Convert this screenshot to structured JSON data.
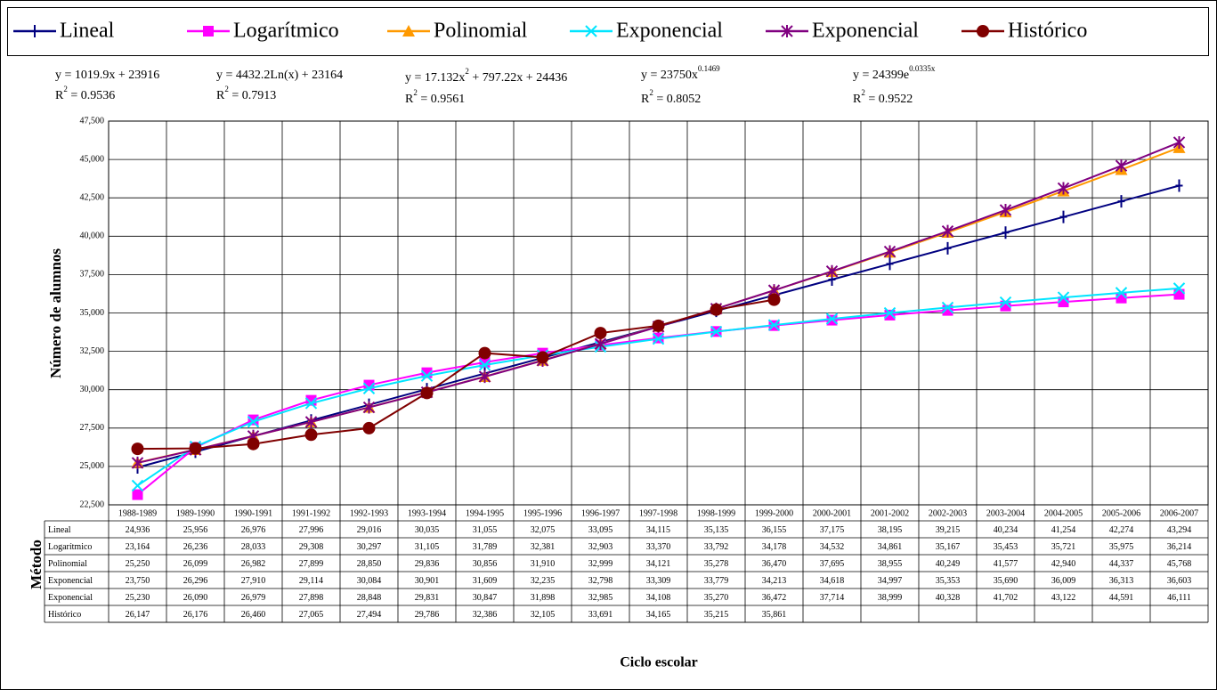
{
  "chart_data": {
    "type": "line",
    "y_label": "Número de alumnos",
    "x_label": "Ciclo escolar",
    "table_label": "Método",
    "annotations": [
      [
        [
          "y = 1019.9x + 23916"
        ],
        [
          "R",
          "2",
          " = 0.9536"
        ]
      ],
      [
        [
          "y = 4432.2Ln(x) + 23164"
        ],
        [
          "R",
          "2",
          " = 0.7913"
        ]
      ],
      [
        [
          "y = 17.132x",
          "2",
          " + 797.22x + 24436"
        ],
        [
          "R",
          "2",
          " = 0.9561"
        ]
      ],
      [
        [
          "y = 23750x",
          "0.1469"
        ],
        [
          "R",
          "2",
          " = 0.8052"
        ]
      ],
      [
        [
          "y = 24399e",
          "0.0335x"
        ],
        [
          "R",
          "2",
          " = 0.9522"
        ]
      ]
    ],
    "categories": [
      "1988-1989",
      "1989-1990",
      "1990-1991",
      "1991-1992",
      "1992-1993",
      "1993-1994",
      "1994-1995",
      "1995-1996",
      "1996-1997",
      "1997-1998",
      "1998-1999",
      "1999-2000",
      "2000-2001",
      "2001-2002",
      "2002-2003",
      "2003-2004",
      "2004-2005",
      "2005-2006",
      "2006-2007"
    ],
    "ylim": [
      22500,
      47500
    ],
    "yticks": [
      {
        "value": 22500,
        "label": "22,500"
      },
      {
        "value": 25000,
        "label": "25,000"
      },
      {
        "value": 27500,
        "label": "27,500"
      },
      {
        "value": 30000,
        "label": "30,000"
      },
      {
        "value": 32500,
        "label": "32,500"
      },
      {
        "value": 35000,
        "label": "35,000"
      },
      {
        "value": 37500,
        "label": "37,500"
      },
      {
        "value": 40000,
        "label": "40,000"
      },
      {
        "value": 42500,
        "label": "42,500"
      },
      {
        "value": 45000,
        "label": "45,000"
      },
      {
        "value": 47500,
        "label": "47,500"
      }
    ],
    "grid": true,
    "series": [
      {
        "name": "Lineal",
        "color": "#000080",
        "marker": "plus",
        "values": [
          24936,
          25956,
          26976,
          27996,
          29016,
          30035,
          31055,
          32075,
          33095,
          34115,
          35135,
          36155,
          37175,
          38195,
          39215,
          40234,
          41254,
          42274,
          43294
        ],
        "value_labels": [
          "24,936",
          "25,956",
          "26,976",
          "27,996",
          "29,016",
          "30,035",
          "31,055",
          "32,075",
          "33,095",
          "34,115",
          "35,135",
          "36,155",
          "37,175",
          "38,195",
          "39,215",
          "40,234",
          "41,254",
          "42,274",
          "43,294"
        ]
      },
      {
        "name": "Logarítmico",
        "color": "#ff00ff",
        "marker": "square",
        "values": [
          23164,
          26236,
          28033,
          29308,
          30297,
          31105,
          31789,
          32381,
          32903,
          33370,
          33792,
          34178,
          34532,
          34861,
          35167,
          35453,
          35721,
          35975,
          36214
        ],
        "value_labels": [
          "23,164",
          "26,236",
          "28,033",
          "29,308",
          "30,297",
          "31,105",
          "31,789",
          "32,381",
          "32,903",
          "33,370",
          "33,792",
          "34,178",
          "34,532",
          "34,861",
          "35,167",
          "35,453",
          "35,721",
          "35,975",
          "36,214"
        ]
      },
      {
        "name": "Polinomial",
        "color": "#ff9900",
        "marker": "triangle",
        "values": [
          25250,
          26099,
          26982,
          27899,
          28850,
          29836,
          30856,
          31910,
          32999,
          34121,
          35278,
          36470,
          37695,
          38955,
          40249,
          41577,
          42940,
          44337,
          45768
        ],
        "value_labels": [
          "25,250",
          "26,099",
          "26,982",
          "27,899",
          "28,850",
          "29,836",
          "30,856",
          "31,910",
          "32,999",
          "34,121",
          "35,278",
          "36,470",
          "37,695",
          "38,955",
          "40,249",
          "41,577",
          "42,940",
          "44,337",
          "45,768"
        ]
      },
      {
        "name": "Exponencial",
        "color": "#00e5ff",
        "marker": "x",
        "values": [
          23750,
          26296,
          27910,
          29114,
          30084,
          30901,
          31609,
          32235,
          32798,
          33309,
          33779,
          34213,
          34618,
          34997,
          35353,
          35690,
          36009,
          36313,
          36603
        ],
        "value_labels": [
          "23,750",
          "26,296",
          "27,910",
          "29,114",
          "30,084",
          "30,901",
          "31,609",
          "32,235",
          "32,798",
          "33,309",
          "33,779",
          "34,213",
          "34,618",
          "34,997",
          "35,353",
          "35,690",
          "36,009",
          "36,313",
          "36,603"
        ]
      },
      {
        "name": "Exponencial",
        "color": "#800080",
        "marker": "star",
        "values": [
          25230,
          26090,
          26979,
          27898,
          28848,
          29831,
          30847,
          31898,
          32985,
          34108,
          35270,
          36472,
          37714,
          38999,
          40328,
          41702,
          43122,
          44591,
          46111
        ],
        "value_labels": [
          "25,230",
          "26,090",
          "26,979",
          "27,898",
          "28,848",
          "29,831",
          "30,847",
          "31,898",
          "32,985",
          "34,108",
          "35,270",
          "36,472",
          "37,714",
          "38,999",
          "40,328",
          "41,702",
          "43,122",
          "44,591",
          "46,111"
        ]
      },
      {
        "name": "Histórico",
        "color": "#800000",
        "marker": "circle",
        "values": [
          26147,
          26176,
          26460,
          27065,
          27494,
          29786,
          32386,
          32105,
          33691,
          34165,
          35215,
          35861,
          null,
          null,
          null,
          null,
          null,
          null,
          null
        ],
        "value_labels": [
          "26,147",
          "26,176",
          "26,460",
          "27,065",
          "27,494",
          "29,786",
          "32,386",
          "32,105",
          "33,691",
          "34,165",
          "35,215",
          "35,861",
          null,
          null,
          null,
          null,
          null,
          null,
          null
        ]
      }
    ]
  }
}
